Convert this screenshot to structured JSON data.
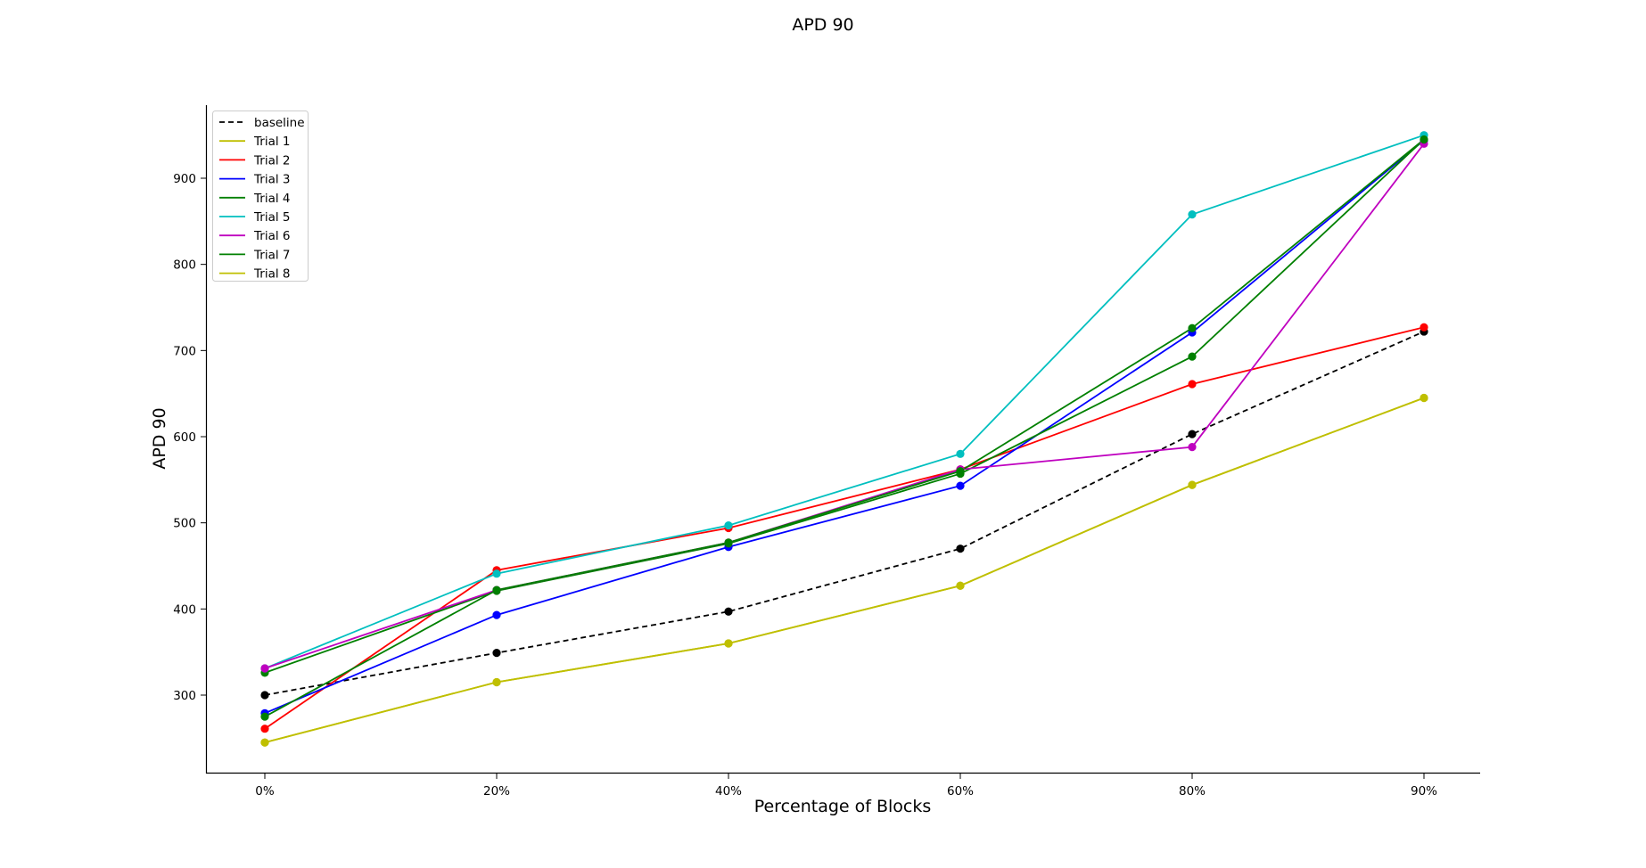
{
  "chart_data": {
    "type": "line",
    "title": "APD 90",
    "xlabel": "Percentage of Blocks",
    "ylabel": "APD 90",
    "categories": [
      "0%",
      "20%",
      "40%",
      "60%",
      "80%",
      "90%"
    ],
    "yticks": [
      300,
      400,
      500,
      600,
      700,
      800,
      900
    ],
    "ylim": [
      210,
      985
    ],
    "grid": false,
    "legend_position": "top-left",
    "series": [
      {
        "name": "baseline",
        "color": "#000000",
        "dashed": true,
        "values": [
          300,
          349,
          397,
          470,
          603,
          722
        ]
      },
      {
        "name": "Trial 1",
        "color": "#bfbf00",
        "dashed": false,
        "values": [
          245,
          315,
          360,
          427,
          544,
          645
        ]
      },
      {
        "name": "Trial 2",
        "color": "#ff0000",
        "dashed": false,
        "values": [
          261,
          445,
          494,
          562,
          661,
          727
        ]
      },
      {
        "name": "Trial 3",
        "color": "#0000ff",
        "dashed": false,
        "values": [
          279,
          393,
          472,
          543,
          721,
          944
        ]
      },
      {
        "name": "Trial 4",
        "color": "#008000",
        "dashed": false,
        "values": [
          326,
          421,
          476,
          557,
          693,
          945
        ]
      },
      {
        "name": "Trial 5",
        "color": "#00bfbf",
        "dashed": false,
        "values": [
          331,
          441,
          497,
          580,
          858,
          950
        ]
      },
      {
        "name": "Trial 6",
        "color": "#bf00bf",
        "dashed": false,
        "values": [
          331,
          422,
          477,
          562,
          588,
          940
        ]
      },
      {
        "name": "Trial 7",
        "color": "#008000",
        "dashed": false,
        "values": [
          275,
          422,
          477,
          560,
          726,
          945
        ]
      },
      {
        "name": "Trial 8",
        "color": "#bfbf00",
        "dashed": false,
        "values": [
          245,
          315,
          360,
          427,
          544,
          645
        ]
      }
    ]
  }
}
